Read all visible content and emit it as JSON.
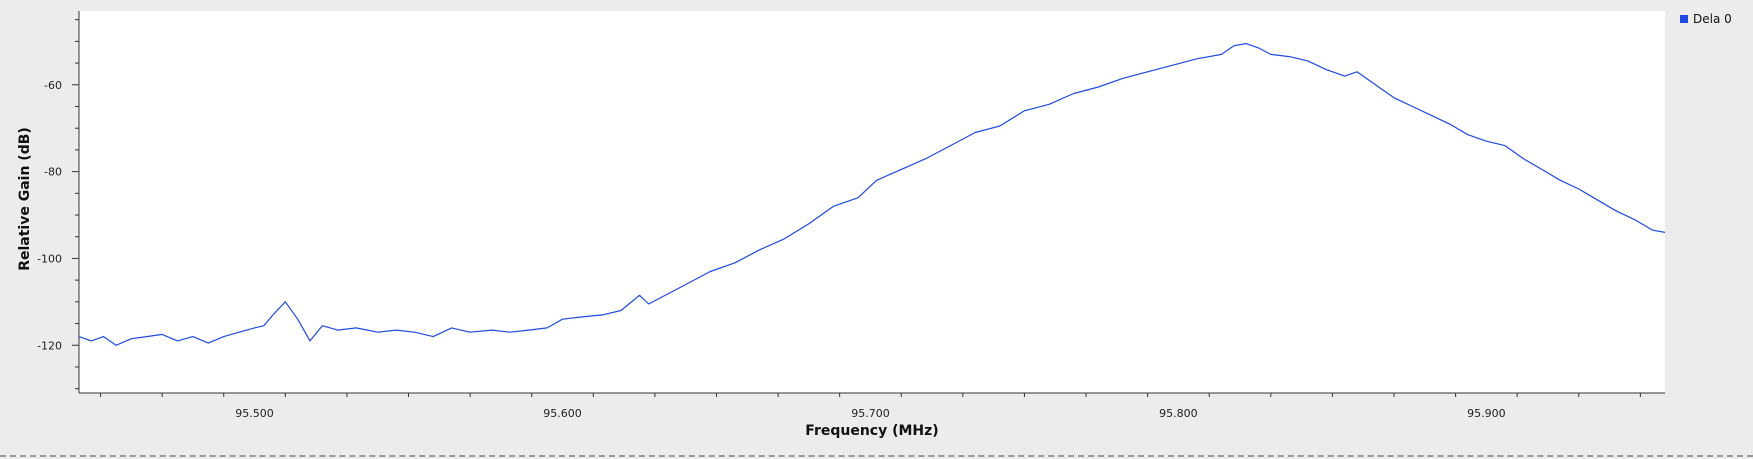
{
  "chart_data": {
    "type": "line",
    "xlabel": "Frequency (MHz)",
    "ylabel": "Relative Gain (dB)",
    "xlim": [
      95.443,
      95.958
    ],
    "ylim": [
      -131,
      -43
    ],
    "x_ticks": [
      95.5,
      95.6,
      95.7,
      95.8,
      95.9
    ],
    "x_tick_labels": [
      "95.500",
      "95.600",
      "95.700",
      "95.800",
      "95.900"
    ],
    "y_ticks": [
      -60,
      -80,
      -100,
      -120
    ],
    "y_tick_labels": [
      "-60",
      "-80",
      "-100",
      "-120"
    ],
    "grid": false,
    "legend_position": "top-right",
    "series": [
      {
        "name": "Dela 0",
        "color": "#1f4ae0",
        "points": [
          [
            95.443,
            -118
          ],
          [
            95.447,
            -119
          ],
          [
            95.451,
            -118
          ],
          [
            95.455,
            -120
          ],
          [
            95.46,
            -118.5
          ],
          [
            95.465,
            -118
          ],
          [
            95.47,
            -117.5
          ],
          [
            95.475,
            -119
          ],
          [
            95.48,
            -118
          ],
          [
            95.485,
            -119.5
          ],
          [
            95.49,
            -118
          ],
          [
            95.495,
            -117
          ],
          [
            95.5,
            -116
          ],
          [
            95.503,
            -115.5
          ],
          [
            95.506,
            -113
          ],
          [
            95.51,
            -110
          ],
          [
            95.514,
            -114
          ],
          [
            95.518,
            -119
          ],
          [
            95.522,
            -115.5
          ],
          [
            95.527,
            -116.5
          ],
          [
            95.533,
            -116
          ],
          [
            95.54,
            -117
          ],
          [
            95.546,
            -116.5
          ],
          [
            95.552,
            -117
          ],
          [
            95.558,
            -118
          ],
          [
            95.564,
            -116
          ],
          [
            95.57,
            -117
          ],
          [
            95.577,
            -116.5
          ],
          [
            95.583,
            -117
          ],
          [
            95.589,
            -116.5
          ],
          [
            95.595,
            -116
          ],
          [
            95.6,
            -114
          ],
          [
            95.606,
            -113.5
          ],
          [
            95.613,
            -113
          ],
          [
            95.619,
            -112
          ],
          [
            95.625,
            -108.5
          ],
          [
            95.628,
            -110.5
          ],
          [
            95.632,
            -109
          ],
          [
            95.64,
            -106
          ],
          [
            95.648,
            -103
          ],
          [
            95.656,
            -101
          ],
          [
            95.664,
            -98
          ],
          [
            95.672,
            -95.5
          ],
          [
            95.68,
            -92
          ],
          [
            95.688,
            -88
          ],
          [
            95.696,
            -86
          ],
          [
            95.702,
            -82
          ],
          [
            95.71,
            -79.5
          ],
          [
            95.718,
            -77
          ],
          [
            95.726,
            -74
          ],
          [
            95.734,
            -71
          ],
          [
            95.742,
            -69.5
          ],
          [
            95.75,
            -66
          ],
          [
            95.758,
            -64.5
          ],
          [
            95.766,
            -62
          ],
          [
            95.774,
            -60.5
          ],
          [
            95.782,
            -58.5
          ],
          [
            95.79,
            -57
          ],
          [
            95.798,
            -55.5
          ],
          [
            95.806,
            -54
          ],
          [
            95.814,
            -53
          ],
          [
            95.818,
            -51
          ],
          [
            95.822,
            -50.5
          ],
          [
            95.826,
            -51.5
          ],
          [
            95.83,
            -53
          ],
          [
            95.836,
            -53.5
          ],
          [
            95.842,
            -54.5
          ],
          [
            95.848,
            -56.5
          ],
          [
            95.854,
            -58
          ],
          [
            95.858,
            -57
          ],
          [
            95.862,
            -59
          ],
          [
            95.866,
            -61
          ],
          [
            95.87,
            -63
          ],
          [
            95.876,
            -65
          ],
          [
            95.882,
            -67
          ],
          [
            95.888,
            -69
          ],
          [
            95.894,
            -71.5
          ],
          [
            95.9,
            -73
          ],
          [
            95.906,
            -74
          ],
          [
            95.912,
            -77
          ],
          [
            95.918,
            -79.5
          ],
          [
            95.924,
            -82
          ],
          [
            95.93,
            -84
          ],
          [
            95.936,
            -86.5
          ],
          [
            95.942,
            -89
          ],
          [
            95.948,
            -91
          ],
          [
            95.954,
            -93.5
          ],
          [
            95.958,
            -94
          ]
        ]
      }
    ]
  }
}
